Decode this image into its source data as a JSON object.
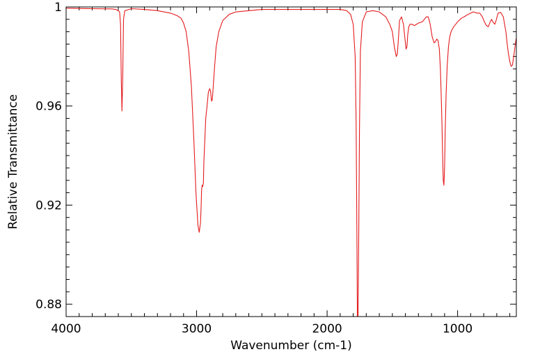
{
  "chart_data": {
    "type": "line",
    "title": "",
    "xlabel": "Wavenumber (cm-1)",
    "ylabel": "Relative Transmittance",
    "xlim": [
      4000,
      550
    ],
    "ylim": [
      0.875,
      1.0
    ],
    "x_reversed": true,
    "x_ticks": [
      4000,
      3000,
      2000,
      1000
    ],
    "x_tick_labels": [
      "4000",
      "3000",
      "2000",
      "1000"
    ],
    "y_ticks": [
      0.88,
      0.92,
      0.96,
      1.0
    ],
    "y_tick_labels": [
      "0.88",
      "0.92",
      "0.96",
      "1"
    ],
    "grid": false,
    "legend": "none",
    "series": [
      {
        "color": "#e41a1c",
        "x": [
          4000,
          3800,
          3650,
          3620,
          3600,
          3590,
          3583,
          3577,
          3572,
          3566,
          3560,
          3550,
          3500,
          3400,
          3300,
          3200,
          3150,
          3120,
          3100,
          3080,
          3060,
          3040,
          3020,
          3005,
          2990,
          2980,
          2970,
          2965,
          2962,
          2958,
          2953,
          2948,
          2944,
          2938,
          2930,
          2920,
          2910,
          2900,
          2893,
          2886,
          2880,
          2875,
          2870,
          2862,
          2850,
          2830,
          2800,
          2750,
          2700,
          2500,
          2200,
          1900,
          1850,
          1820,
          1800,
          1785,
          1778,
          1772,
          1768,
          1763,
          1758,
          1752,
          1745,
          1730,
          1700,
          1650,
          1600,
          1550,
          1520,
          1500,
          1485,
          1470,
          1462,
          1455,
          1445,
          1430,
          1415,
          1405,
          1395,
          1388,
          1382,
          1374,
          1365,
          1350,
          1330,
          1300,
          1270,
          1240,
          1225,
          1210,
          1195,
          1180,
          1170,
          1160,
          1150,
          1140,
          1132,
          1126,
          1120,
          1115,
          1110,
          1105,
          1100,
          1095,
          1088,
          1080,
          1070,
          1060,
          1050,
          1030,
          1000,
          970,
          950,
          920,
          880,
          850,
          830,
          810,
          795,
          780,
          765,
          750,
          740,
          730,
          715,
          705,
          690,
          670,
          650,
          630,
          620,
          610,
          600,
          590,
          580,
          570,
          555,
          550
        ],
        "y": [
          0.9995,
          0.9993,
          0.9992,
          0.999,
          0.9985,
          0.998,
          0.993,
          0.97,
          0.958,
          0.972,
          0.995,
          0.9985,
          0.9993,
          0.999,
          0.9985,
          0.9975,
          0.9965,
          0.9955,
          0.9935,
          0.99,
          0.982,
          0.968,
          0.945,
          0.925,
          0.912,
          0.909,
          0.913,
          0.92,
          0.926,
          0.928,
          0.9275,
          0.929,
          0.938,
          0.945,
          0.955,
          0.96,
          0.9655,
          0.967,
          0.966,
          0.962,
          0.9625,
          0.966,
          0.97,
          0.976,
          0.984,
          0.99,
          0.9945,
          0.997,
          0.998,
          0.999,
          0.999,
          0.999,
          0.9985,
          0.997,
          0.993,
          0.98,
          0.955,
          0.91,
          0.875,
          0.875,
          0.905,
          0.95,
          0.982,
          0.994,
          0.998,
          0.9985,
          0.998,
          0.996,
          0.993,
          0.99,
          0.984,
          0.98,
          0.981,
          0.986,
          0.9945,
          0.996,
          0.993,
          0.988,
          0.983,
          0.984,
          0.989,
          0.992,
          0.993,
          0.993,
          0.9925,
          0.9935,
          0.994,
          0.996,
          0.996,
          0.993,
          0.988,
          0.9855,
          0.986,
          0.987,
          0.9865,
          0.983,
          0.975,
          0.965,
          0.953,
          0.94,
          0.93,
          0.928,
          0.935,
          0.95,
          0.965,
          0.976,
          0.984,
          0.988,
          0.99,
          0.992,
          0.994,
          0.9955,
          0.996,
          0.997,
          0.998,
          0.9975,
          0.9975,
          0.996,
          0.994,
          0.9925,
          0.992,
          0.994,
          0.995,
          0.994,
          0.993,
          0.9945,
          0.9975,
          0.9978,
          0.996,
          0.99,
          0.985,
          0.981,
          0.978,
          0.976,
          0.9765,
          0.98,
          0.986,
          0.9875
        ]
      }
    ]
  }
}
